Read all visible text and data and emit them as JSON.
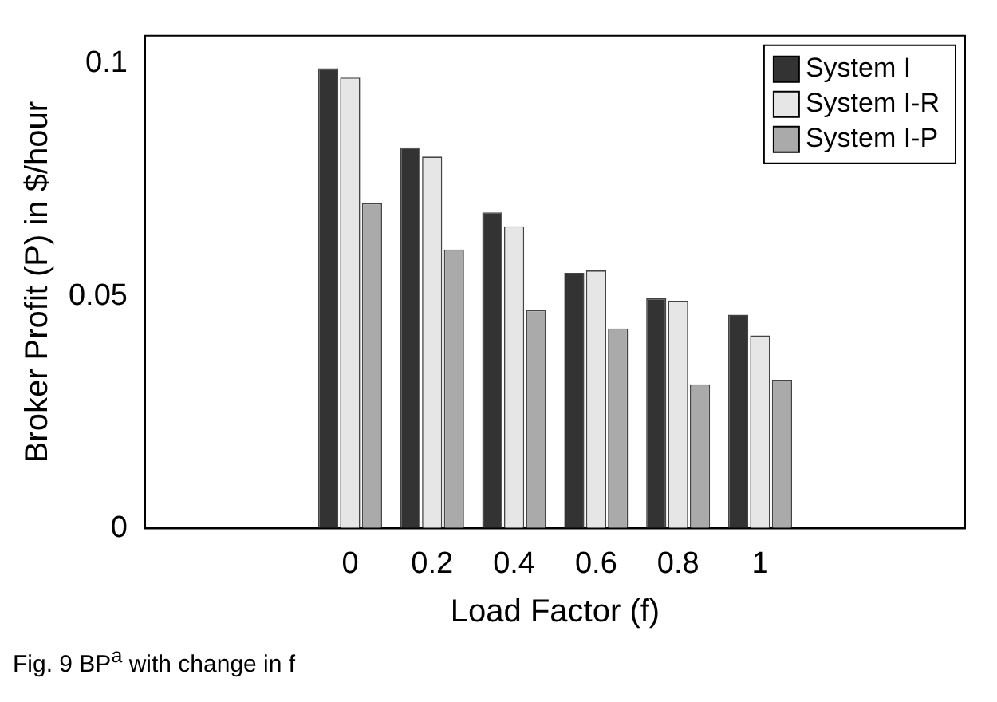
{
  "chart_data": {
    "type": "bar",
    "xlabel": "Load Factor (f)",
    "ylabel": "Broker Profit (P) in $/hour",
    "x": [
      0,
      0.2,
      0.4,
      0.6,
      0.8,
      1
    ],
    "series": [
      {
        "name": "System I",
        "color": "#333333",
        "values": [
          0.099,
          0.082,
          0.068,
          0.055,
          0.0495,
          0.046
        ]
      },
      {
        "name": "System I-R",
        "color": "#e6e6e6",
        "values": [
          0.097,
          0.08,
          0.065,
          0.0555,
          0.049,
          0.0415
        ]
      },
      {
        "name": "System I-P",
        "color": "#aaaaaa",
        "values": [
          0.07,
          0.06,
          0.047,
          0.043,
          0.031,
          0.032
        ]
      }
    ],
    "xlim": [
      -0.5,
      1.5
    ],
    "xticks": [
      0,
      0.2,
      0.4,
      0.6,
      0.8,
      1
    ],
    "ylim": [
      0,
      0.106
    ],
    "yticks": [
      0,
      0.05,
      0.1
    ],
    "grid": false,
    "legend": "top right",
    "annotations": [
      "Fig. 9 BP$^{a}$ with change in f"
    ]
  }
}
